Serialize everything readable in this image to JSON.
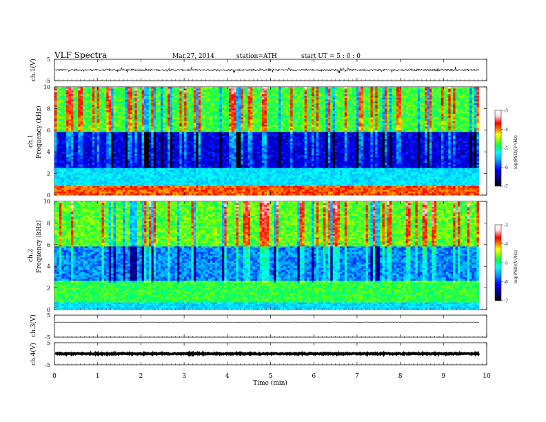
{
  "header": {
    "title": "VLF  Spectra",
    "date": "Mar.27, 2014",
    "station": "station=ATH",
    "start": "start  UT  =   5  : 0  : 0"
  },
  "colors": {
    "spectrogram_scale": [
      "#000000",
      "#000080",
      "#0000ff",
      "#00a0ff",
      "#00ffff",
      "#00ff60",
      "#80ff00",
      "#ffff00",
      "#ff8000",
      "#ff0000",
      "#ffe0e0",
      "#ffffff"
    ]
  },
  "chart_data": [
    {
      "type": "line",
      "name": "ch1-waveform",
      "ylabel": "ch.1(V)",
      "ylim": [
        -5,
        5
      ],
      "yticks": [
        "5",
        "-5"
      ],
      "xlim": [
        0,
        10
      ],
      "baseline": 0,
      "amplitude": 0.4
    },
    {
      "type": "heatmap",
      "name": "ch1-spectrogram",
      "ylabel_line1": "ch.1",
      "ylabel_line2": "Frequency  (kHz)",
      "ylim": [
        0,
        10
      ],
      "yticks": [
        "0",
        "2",
        "4",
        "6",
        "8",
        "10"
      ],
      "colorbar": {
        "label": "log(PSD)(V²/Hz)",
        "range": [
          -7,
          -3
        ],
        "ticks": [
          "-3",
          "-4",
          "-5",
          "-6",
          "-7"
        ]
      }
    },
    {
      "type": "heatmap",
      "name": "ch2-spectrogram",
      "ylabel_line1": "ch.2",
      "ylabel_line2": "Frequency  (kHz)",
      "ylim": [
        0,
        10
      ],
      "yticks": [
        "0",
        "2",
        "4",
        "6",
        "8",
        "10"
      ],
      "colorbar": {
        "label": "log(PSD)(V²/Hz)",
        "range": [
          -7,
          -3
        ],
        "ticks": [
          "-3",
          "-4",
          "-5",
          "-6",
          "-7"
        ]
      }
    },
    {
      "type": "line",
      "name": "ch3-waveform",
      "ylabel": "ch.3(V)",
      "ylim": [
        -5,
        5
      ],
      "yticks": [
        "5",
        "-5"
      ],
      "baseline": 1.8,
      "amplitude": 0.05
    },
    {
      "type": "line",
      "name": "ch4-waveform",
      "ylabel": "ch.4(V)",
      "ylim": [
        -5,
        5
      ],
      "yticks": [
        "5",
        "-5"
      ],
      "baseline": 0,
      "amplitude": 0.25
    }
  ],
  "xaxis": {
    "label": "Time  (min)",
    "xlim": [
      0,
      10
    ],
    "ticks": [
      "0",
      "1",
      "2",
      "3",
      "4",
      "5",
      "6",
      "7",
      "8",
      "9",
      "10"
    ],
    "data_end": 9.82
  }
}
